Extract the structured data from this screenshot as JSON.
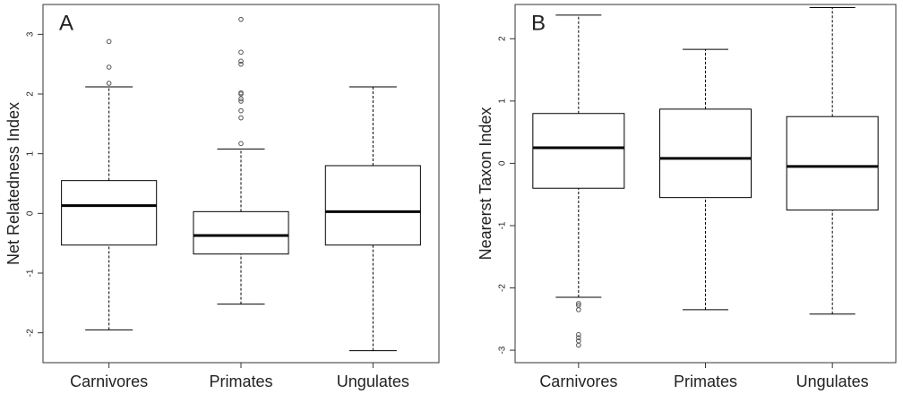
{
  "chart_data": [
    {
      "type": "box",
      "panel_label": "A",
      "y_label": "Net Relatedness Index",
      "categories": [
        "Carnivores",
        "Primates",
        "Ungulates"
      ],
      "boxes": [
        {
          "min": -1.95,
          "q1": -0.53,
          "median": 0.13,
          "q3": 0.55,
          "max": 2.12,
          "outliers": [
            2.18,
            2.45,
            2.88
          ]
        },
        {
          "min": -1.52,
          "q1": -0.68,
          "median": -0.37,
          "q3": 0.03,
          "max": 1.08,
          "outliers": [
            1.17,
            1.6,
            1.72,
            1.88,
            1.92,
            2.0,
            2.02,
            2.5,
            2.55,
            2.7,
            3.25
          ]
        },
        {
          "min": -2.3,
          "q1": -0.53,
          "median": 0.03,
          "q3": 0.8,
          "max": 2.12,
          "outliers": []
        }
      ],
      "ylim": [
        -2.5,
        3.5
      ],
      "yticks": [
        -2,
        -1,
        0,
        1,
        2,
        3
      ],
      "color": "#000000"
    },
    {
      "type": "box",
      "panel_label": "B",
      "y_label": "Nearerst Taxon Index",
      "categories": [
        "Carnivores",
        "Primates",
        "Ungulates"
      ],
      "boxes": [
        {
          "min": -2.15,
          "q1": -0.4,
          "median": 0.25,
          "q3": 0.8,
          "max": 2.38,
          "outliers": [
            -2.25,
            -2.28,
            -2.35,
            -2.75,
            -2.8,
            -2.85,
            -2.92
          ]
        },
        {
          "min": -2.35,
          "q1": -0.55,
          "median": 0.08,
          "q3": 0.87,
          "max": 1.83,
          "outliers": []
        },
        {
          "min": -2.42,
          "q1": -0.75,
          "median": -0.05,
          "q3": 0.75,
          "max": 2.5,
          "outliers": []
        }
      ],
      "ylim": [
        -3.2,
        2.55
      ],
      "yticks": [
        -3,
        -2,
        -1,
        0,
        1,
        2
      ],
      "color": "#000000"
    }
  ]
}
